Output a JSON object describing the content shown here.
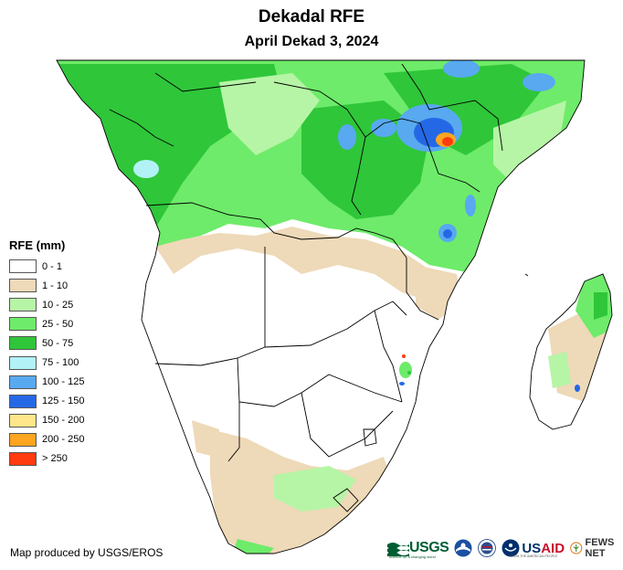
{
  "title": "Dekadal RFE",
  "subtitle": "April Dekad 3, 2024",
  "legend": {
    "title": "RFE (mm)",
    "items": [
      {
        "label": "0 - 1",
        "color": "#ffffff"
      },
      {
        "label": "1 - 10",
        "color": "#eed9b8"
      },
      {
        "label": "10 - 25",
        "color": "#b6f5a6"
      },
      {
        "label": "25 - 50",
        "color": "#6eeb6a"
      },
      {
        "label": "50 - 75",
        "color": "#2fc63a"
      },
      {
        "label": "75 - 100",
        "color": "#b2f2f6"
      },
      {
        "label": "100 - 125",
        "color": "#58a9f0"
      },
      {
        "label": "125 - 150",
        "color": "#2568e6"
      },
      {
        "label": "150 - 200",
        "color": "#ffe68a"
      },
      {
        "label": "200 - 250",
        "color": "#ffa51f"
      },
      {
        "label": "> 250",
        "color": "#ff3b0f"
      }
    ]
  },
  "credit": "Map produced by USGS/EROS",
  "logos": {
    "usgs": "USGS",
    "usgs_tagline": "science for a changing world",
    "usaid_prefix": "US",
    "usaid_suffix": "AID",
    "usaid_tagline": "FROM THE AMERICAN PEOPLE",
    "fews": "FEWS NET"
  },
  "icons": [
    "usgs-logo",
    "noaa-logo",
    "usda-logo",
    "usaid-logo",
    "fews-net-logo"
  ]
}
